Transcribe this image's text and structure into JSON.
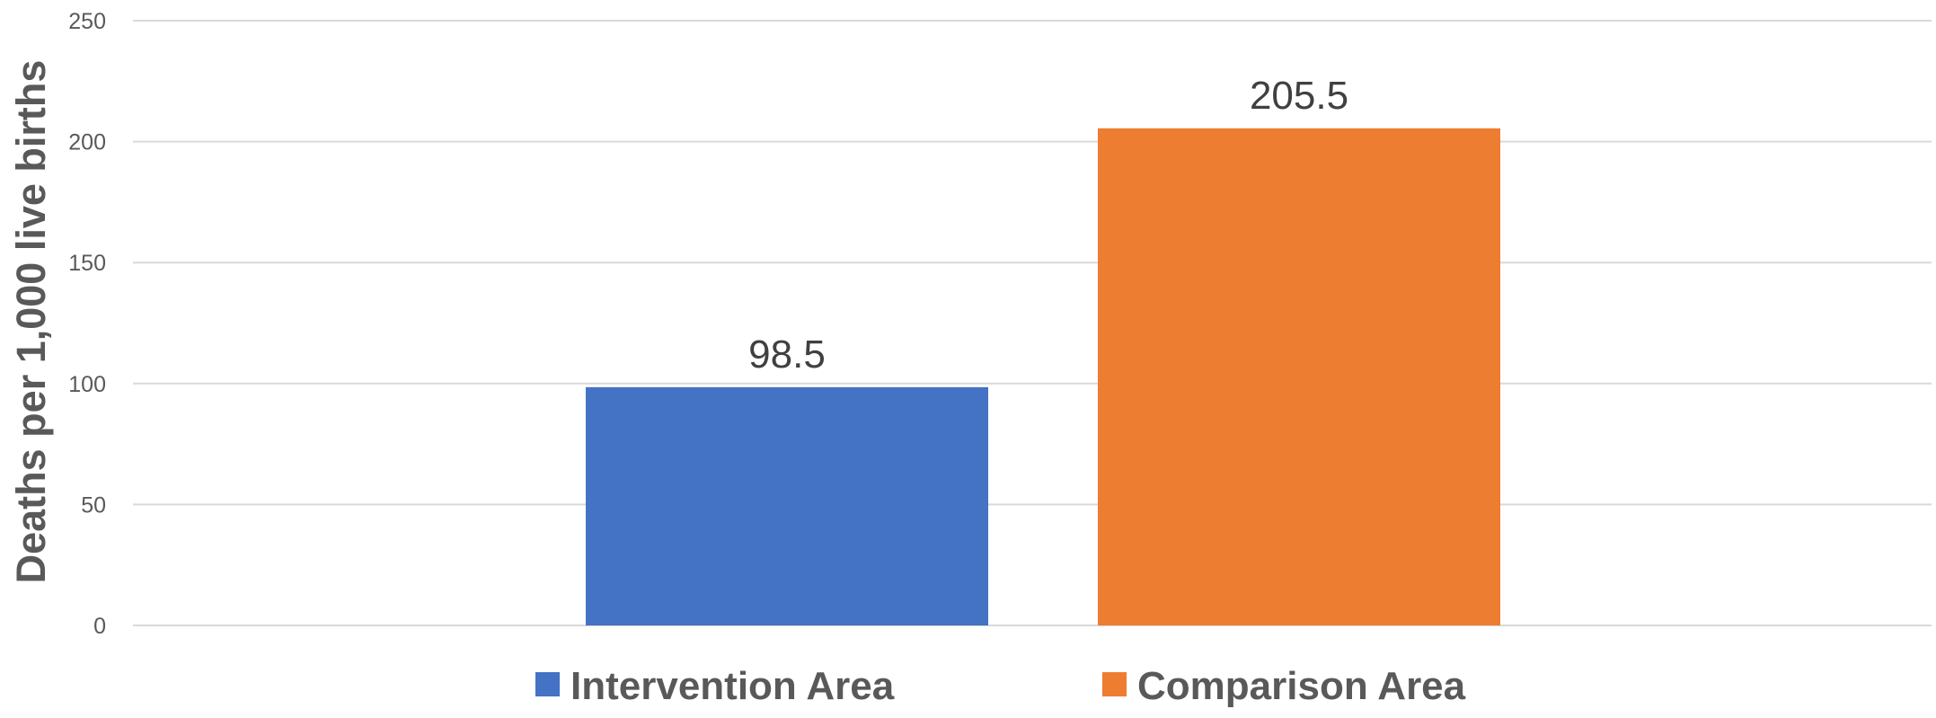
{
  "chart_data": {
    "type": "bar",
    "title": "",
    "xlabel": "",
    "ylabel": "Deaths per 1,000 live births",
    "ylim": [
      0,
      250
    ],
    "yticks": [
      0,
      50,
      100,
      150,
      200,
      250
    ],
    "grid": true,
    "legend_position": "bottom",
    "series": [
      {
        "name": "Intervention Area",
        "values": [
          98.5
        ],
        "color": "#4472C4"
      },
      {
        "name": "Comparison Area",
        "values": [
          205.5
        ],
        "color": "#ED7D31"
      }
    ]
  }
}
